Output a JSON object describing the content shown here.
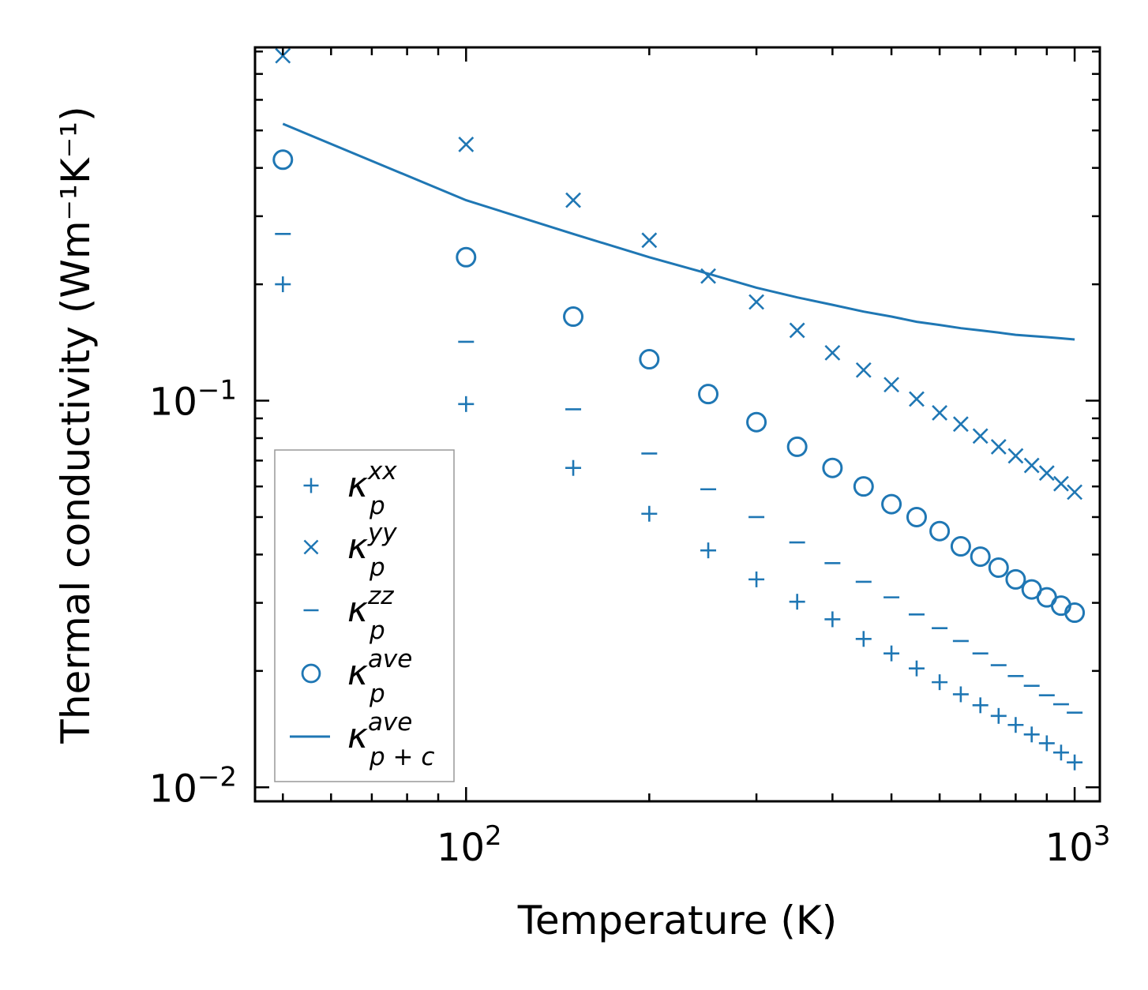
{
  "chart_data": {
    "type": "scatter",
    "title": "",
    "xlabel": "Temperature (K)",
    "ylabel": "Thermal conductivity (Wm⁻¹K⁻¹)",
    "xscale": "log",
    "yscale": "log",
    "xlim": [
      45,
      1100
    ],
    "ylim": [
      0.0092,
      0.82
    ],
    "x_ticks": [
      {
        "value": 100,
        "base": "10",
        "exp": "2"
      },
      {
        "value": 1000,
        "base": "10",
        "exp": "3"
      }
    ],
    "y_ticks": [
      {
        "value": 0.01,
        "base": "10",
        "exp": "−2"
      },
      {
        "value": 0.1,
        "base": "10",
        "exp": "−1"
      }
    ],
    "grid": false,
    "legend_position": "lower-left",
    "x": [
      50,
      100,
      150,
      200,
      250,
      300,
      350,
      400,
      450,
      500,
      550,
      600,
      650,
      700,
      750,
      800,
      850,
      900,
      950,
      1000
    ],
    "series": [
      {
        "name": "kxx",
        "label_base": "κ",
        "label_sup": "xx",
        "label_sub": "p",
        "marker": "plus",
        "values": [
          0.2,
          0.098,
          0.067,
          0.051,
          0.041,
          0.0345,
          0.0302,
          0.0272,
          0.0242,
          0.0222,
          0.0203,
          0.0187,
          0.0174,
          0.0163,
          0.0153,
          0.0145,
          0.0137,
          0.013,
          0.0123,
          0.0116
        ]
      },
      {
        "name": "kyy",
        "label_base": "κ",
        "label_sup": "yy",
        "label_sub": "p",
        "marker": "x",
        "values": [
          0.78,
          0.46,
          0.33,
          0.26,
          0.21,
          0.18,
          0.152,
          0.133,
          0.12,
          0.11,
          0.101,
          0.093,
          0.087,
          0.081,
          0.076,
          0.072,
          0.068,
          0.065,
          0.061,
          0.058
        ]
      },
      {
        "name": "kzz",
        "label_base": "κ",
        "label_sup": "zz",
        "label_sub": "p",
        "marker": "hline",
        "values": [
          0.27,
          0.142,
          0.095,
          0.073,
          0.059,
          0.05,
          0.043,
          0.038,
          0.034,
          0.031,
          0.028,
          0.0258,
          0.0239,
          0.0222,
          0.0207,
          0.0194,
          0.0183,
          0.0173,
          0.0164,
          0.0156
        ]
      },
      {
        "name": "kave",
        "label_base": "κ",
        "label_sup": "ave",
        "label_sub": "p",
        "marker": "circle",
        "values": [
          0.42,
          0.235,
          0.165,
          0.128,
          0.104,
          0.088,
          0.076,
          0.067,
          0.06,
          0.054,
          0.05,
          0.046,
          0.042,
          0.0395,
          0.037,
          0.0345,
          0.0325,
          0.031,
          0.0295,
          0.0283
        ]
      },
      {
        "name": "kave_pc",
        "label_base": "κ",
        "label_sup": "ave",
        "label_sub": "p + c",
        "marker": "line",
        "values": [
          0.52,
          0.33,
          0.27,
          0.235,
          0.213,
          0.196,
          0.185,
          0.177,
          0.17,
          0.165,
          0.16,
          0.157,
          0.154,
          0.152,
          0.15,
          0.148,
          0.147,
          0.146,
          0.145,
          0.144
        ]
      }
    ],
    "colors": {
      "series": "#1f77b4",
      "axes": "#000000",
      "legend_border": "#999999"
    }
  }
}
